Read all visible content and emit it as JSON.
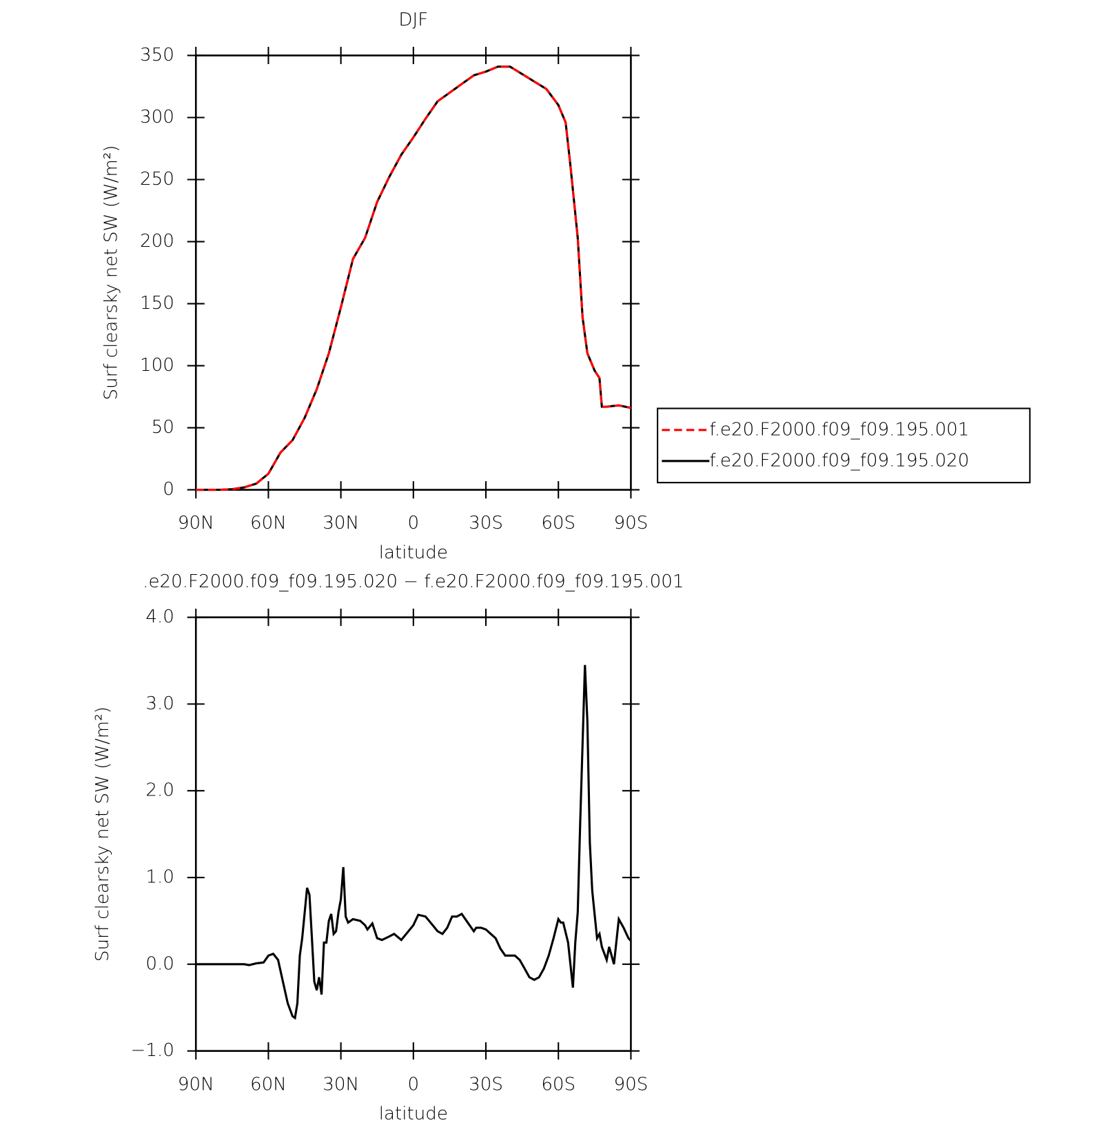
{
  "chart_data": [
    {
      "type": "line",
      "title": "DJF",
      "xlabel": "latitude",
      "ylabel": "Surf clearsky net SW (W/m²)",
      "x": [
        90,
        85,
        80,
        75,
        70,
        65,
        60,
        55,
        50,
        45,
        40,
        35,
        30,
        25,
        20,
        15,
        10,
        5,
        0,
        -5,
        -10,
        -15,
        -20,
        -25,
        -30,
        -35,
        -40,
        -45,
        -50,
        -55,
        -60,
        -63,
        -65,
        -68,
        -70,
        -72,
        -75,
        -77,
        -78,
        -80,
        -85,
        -90
      ],
      "series": [
        {
          "name": "f.e20.F2000.f09_f09.195.001",
          "color": "#ff0000",
          "dash": true,
          "values": [
            0,
            0,
            0,
            0.5,
            2,
            5,
            13,
            30,
            40,
            58,
            81,
            110,
            147,
            186,
            203,
            232,
            252,
            270,
            284,
            299,
            313,
            320,
            327,
            334,
            337,
            341,
            341,
            335,
            329,
            323,
            310,
            296,
            261,
            203,
            139,
            110,
            96,
            90,
            67,
            67,
            68,
            66
          ]
        },
        {
          "name": "f.e20.F2000.f09_f09.195.020",
          "color": "#000000",
          "dash": false,
          "values": [
            0,
            0,
            0,
            0.5,
            2,
            5,
            13,
            30,
            40,
            58,
            81,
            110,
            147,
            186,
            203,
            232,
            252,
            270,
            284,
            299,
            313,
            320,
            327,
            334,
            337,
            341,
            341,
            335,
            329,
            323,
            310,
            296,
            261,
            203,
            139,
            110,
            96,
            90,
            67,
            67,
            68,
            66
          ]
        }
      ],
      "xlim": [
        90,
        -90
      ],
      "xticks": [
        {
          "value": 90,
          "label": "90N"
        },
        {
          "value": 60,
          "label": "60N"
        },
        {
          "value": 30,
          "label": "30N"
        },
        0,
        {
          "value": -30,
          "label": "30S"
        },
        {
          "value": -60,
          "label": "60S"
        },
        {
          "value": -90,
          "label": "90S"
        }
      ],
      "ylim": [
        0,
        350
      ],
      "yticks": [
        0,
        50,
        100,
        150,
        200,
        250,
        300,
        350
      ],
      "legend": "right"
    },
    {
      "type": "line",
      "title": ".e20.F2000.f09_f09.195.020 − f.e20.F2000.f09_f09.195.001",
      "xlabel": "latitude",
      "ylabel": "Surf clearsky net SW (W/m²)",
      "x": [
        90,
        80,
        70,
        68,
        65,
        62,
        60,
        58,
        56,
        54,
        52,
        50,
        49,
        48,
        47,
        46,
        44,
        43,
        42,
        41,
        40,
        39,
        38,
        37,
        36,
        35,
        34,
        33,
        32,
        31,
        30,
        29,
        28,
        27,
        25,
        22,
        20,
        19,
        17,
        15,
        13,
        10,
        8,
        5,
        0,
        -2,
        -5,
        -8,
        -10,
        -12,
        -14,
        -16,
        -18,
        -20,
        -22,
        -24,
        -25,
        -26,
        -28,
        -30,
        -32,
        -34,
        -36,
        -38,
        -40,
        -42,
        -44,
        -46,
        -48,
        -50,
        -52,
        -54,
        -56,
        -58,
        -60,
        -61,
        -62,
        -64,
        -66,
        -67,
        -68,
        -69,
        -71,
        -72,
        -73,
        -74,
        -76,
        -77,
        -78,
        -80,
        -81,
        -82,
        -83,
        -85,
        -87,
        -89,
        -90
      ],
      "values": [
        0,
        0,
        0,
        -0.01,
        0.01,
        0.02,
        0.1,
        0.12,
        0.05,
        -0.2,
        -0.45,
        -0.6,
        -0.62,
        -0.45,
        0.1,
        0.3,
        0.88,
        0.8,
        0.3,
        -0.2,
        -0.3,
        -0.15,
        -0.35,
        0.25,
        0.25,
        0.5,
        0.58,
        0.35,
        0.38,
        0.6,
        0.75,
        1.12,
        0.55,
        0.48,
        0.52,
        0.5,
        0.45,
        0.4,
        0.47,
        0.3,
        0.28,
        0.32,
        0.35,
        0.28,
        0.45,
        0.57,
        0.55,
        0.45,
        0.38,
        0.35,
        0.42,
        0.55,
        0.55,
        0.58,
        0.5,
        0.42,
        0.38,
        0.42,
        0.42,
        0.4,
        0.35,
        0.3,
        0.18,
        0.1,
        0.1,
        0.1,
        0.05,
        -0.05,
        -0.15,
        -0.18,
        -0.15,
        -0.05,
        0.1,
        0.3,
        0.52,
        0.48,
        0.48,
        0.25,
        -0.27,
        0.25,
        0.6,
        1.6,
        3.45,
        2.8,
        1.4,
        0.85,
        0.3,
        0.35,
        0.2,
        0.05,
        0.2,
        0.1,
        0,
        0.52,
        0.42,
        0.3,
        0.27
      ],
      "color": "#000000",
      "xlim": [
        90,
        -90
      ],
      "xticks": [
        {
          "value": 90,
          "label": "90N"
        },
        {
          "value": 60,
          "label": "60N"
        },
        {
          "value": 30,
          "label": "30N"
        },
        0,
        {
          "value": -30,
          "label": "30S"
        },
        {
          "value": -60,
          "label": "60S"
        },
        {
          "value": -90,
          "label": "90S"
        }
      ],
      "ylim": [
        -1,
        4
      ],
      "yticks": [
        {
          "value": -1,
          "label": "−1.0"
        },
        {
          "value": 0,
          "label": "0.0"
        },
        {
          "value": 1,
          "label": "1.0"
        },
        {
          "value": 2,
          "label": "2.0"
        },
        {
          "value": 3,
          "label": "3.0"
        },
        {
          "value": 4,
          "label": "4.0"
        }
      ]
    }
  ]
}
